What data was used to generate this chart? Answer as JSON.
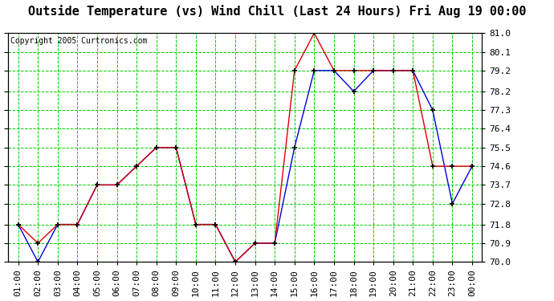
{
  "title": "Outside Temperature (vs) Wind Chill (Last 24 Hours) Fri Aug 19 00:00",
  "copyright": "Copyright 2005 Curtronics.com",
  "x_labels": [
    "01:00",
    "02:00",
    "03:00",
    "04:00",
    "05:00",
    "06:00",
    "07:00",
    "08:00",
    "09:00",
    "10:00",
    "11:00",
    "12:00",
    "13:00",
    "14:00",
    "15:00",
    "16:00",
    "17:00",
    "18:00",
    "19:00",
    "20:00",
    "21:00",
    "22:00",
    "23:00",
    "00:00"
  ],
  "outside_temp": [
    71.8,
    70.0,
    71.8,
    71.8,
    73.7,
    73.7,
    74.6,
    75.5,
    75.5,
    71.8,
    71.8,
    70.0,
    70.9,
    70.9,
    75.5,
    79.2,
    79.2,
    78.2,
    79.2,
    79.2,
    79.2,
    77.3,
    72.8,
    74.6
  ],
  "wind_chill": [
    71.8,
    70.9,
    71.8,
    71.8,
    73.7,
    73.7,
    74.6,
    75.5,
    75.5,
    71.8,
    71.8,
    70.0,
    70.9,
    70.9,
    79.2,
    81.0,
    79.2,
    79.2,
    79.2,
    79.2,
    79.2,
    74.6,
    74.6,
    74.6
  ],
  "temp_color": "#0000dd",
  "wind_color": "#dd0000",
  "bg_color": "#ffffff",
  "grid_color": "#00cc00",
  "plot_bg": "#ffffff",
  "ylim": [
    70.0,
    81.0
  ],
  "yticks": [
    70.0,
    70.9,
    71.8,
    72.8,
    73.7,
    74.6,
    75.5,
    76.4,
    77.3,
    78.2,
    79.2,
    80.1,
    81.0
  ],
  "title_fontsize": 11,
  "copyright_fontsize": 7,
  "tick_fontsize": 8
}
